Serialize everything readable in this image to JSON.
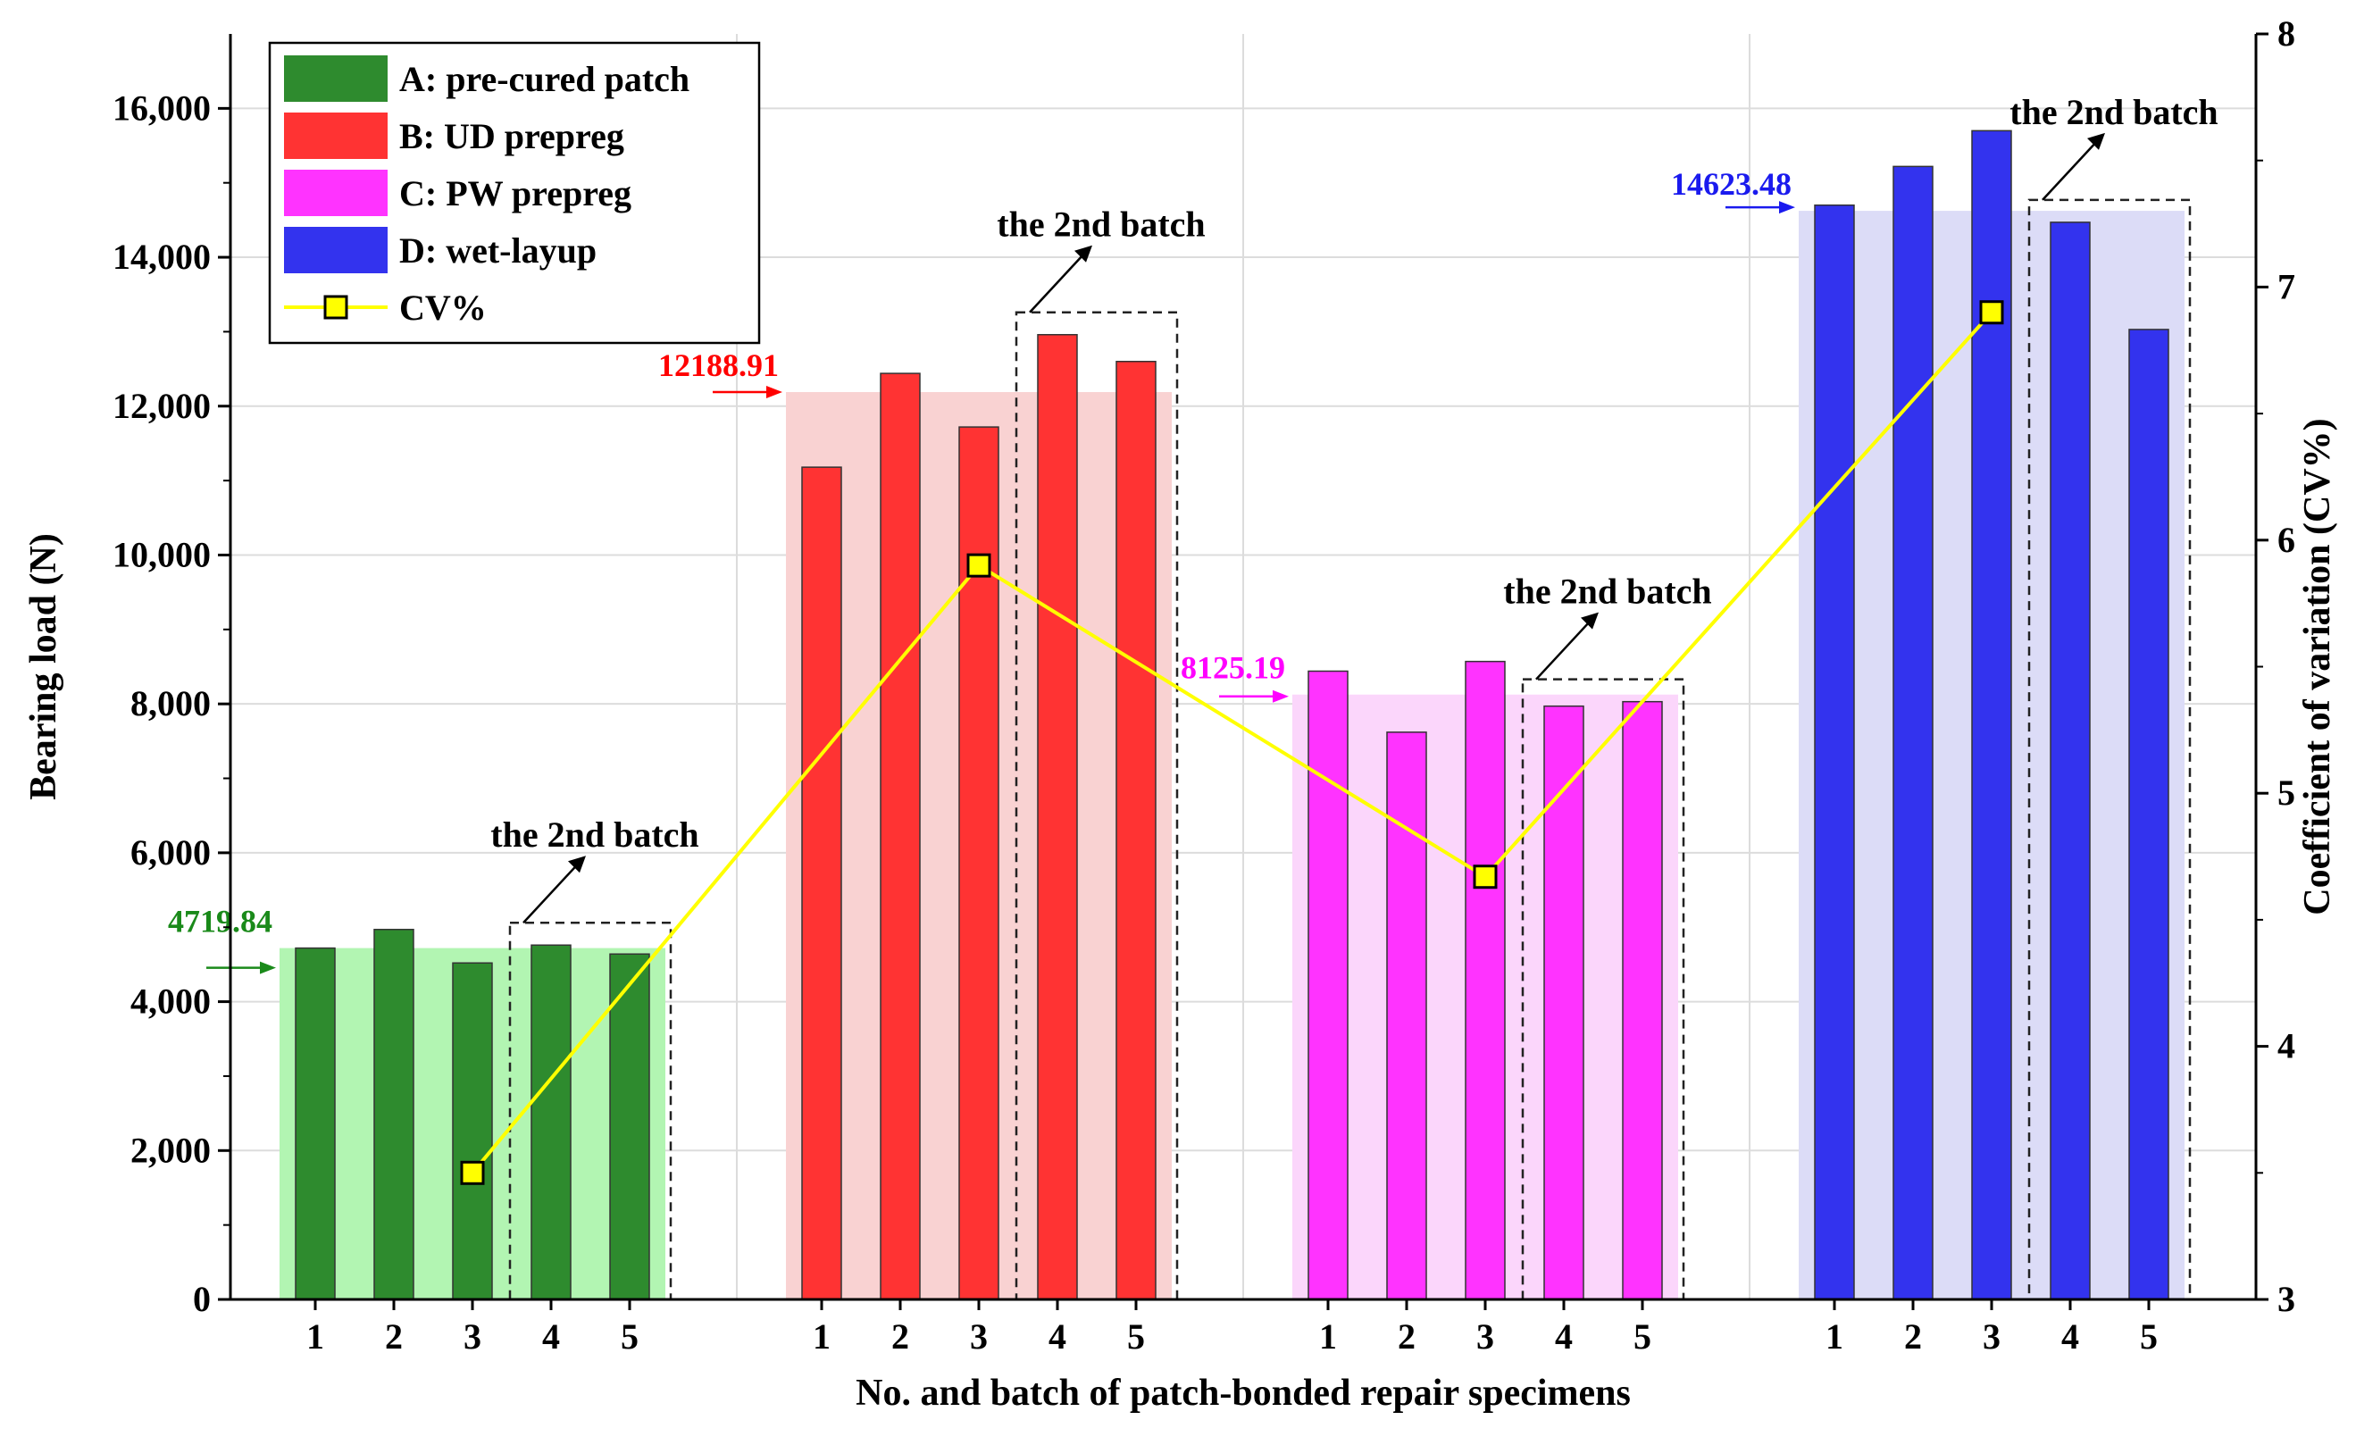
{
  "chart_data": {
    "type": "bar",
    "x_label": "No. and batch of patch-bonded repair specimens",
    "y_label": "Bearing load (N)",
    "y2_label": "Coefficient of variation (CV%)",
    "ylim": [
      0,
      17000
    ],
    "y_ticks": [
      0,
      2000,
      4000,
      6000,
      8000,
      10000,
      12000,
      14000,
      16000
    ],
    "y_tick_labels": [
      "0",
      "2,000",
      "4,000",
      "6,000",
      "8,000",
      "10,000",
      "12,000",
      "14,000",
      "16,000"
    ],
    "y2lim": [
      3,
      8
    ],
    "y2_ticks": [
      3,
      4,
      5,
      6,
      7,
      8
    ],
    "y2_tick_labels": [
      "3",
      "4",
      "5",
      "6",
      "7",
      "8"
    ],
    "categories": [
      "1",
      "2",
      "3",
      "4",
      "5"
    ],
    "series": [
      {
        "name": "A: pre-cured patch",
        "color": "#2e8b2e",
        "mean_color": "#b2f5b2",
        "label_color": "#1a8a1a",
        "values": [
          4720,
          4970,
          4520,
          4760,
          4640
        ],
        "mean": 4719.84,
        "mean_label": "4719.84"
      },
      {
        "name": "B: UD prepreg",
        "color": "#ff3333",
        "mean_color": "#f9d2d2",
        "label_color": "#ff0000",
        "values": [
          11180,
          12440,
          11720,
          12960,
          12600
        ],
        "mean": 12188.91,
        "mean_label": "12188.91"
      },
      {
        "name": "C: PW prepreg",
        "color": "#ff33ff",
        "mean_color": "#fbd6fb",
        "label_color": "#ff00ff",
        "values": [
          8440,
          7620,
          8570,
          7970,
          8030
        ],
        "mean": 8125.19,
        "mean_label": "8125.19"
      },
      {
        "name": "D: wet-layup",
        "color": "#3333ee",
        "mean_color": "#dcdcf7",
        "label_color": "#1a1aee",
        "values": [
          14700,
          15220,
          15700,
          14470,
          13030
        ],
        "mean": 14623.48,
        "mean_label": "14623.48"
      }
    ],
    "cv": {
      "name": "CV%",
      "color": "#ffff00",
      "line_color": "#ffff00",
      "values": [
        3.5,
        5.9,
        4.67,
        6.9
      ]
    },
    "batch_label": "the 2nd batch"
  }
}
